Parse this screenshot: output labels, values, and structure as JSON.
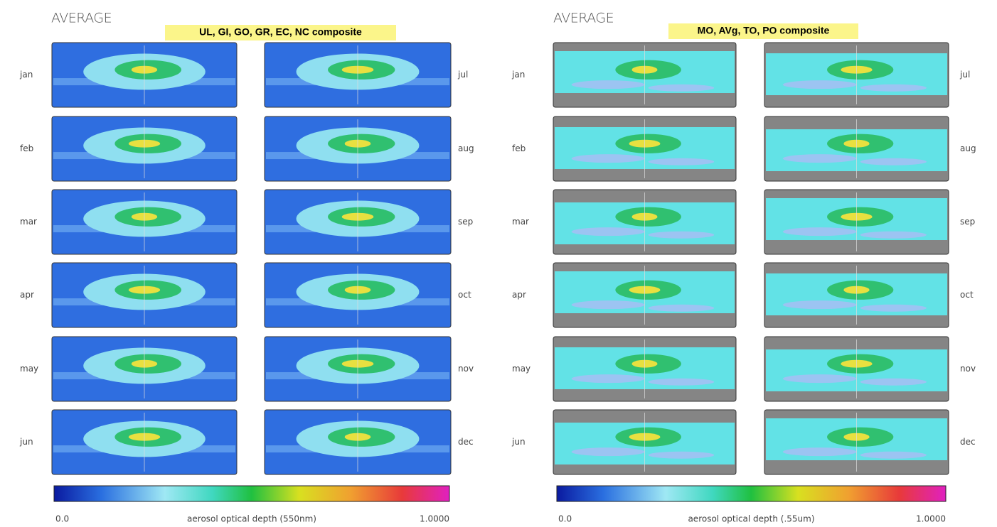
{
  "panels": [
    {
      "title": "AVERAGE",
      "subtitle": "UL, GI, GO, GR, EC, NC composite",
      "months_left": [
        "jan",
        "feb",
        "mar",
        "apr",
        "may",
        "jun"
      ],
      "months_right": [
        "jul",
        "aug",
        "sep",
        "oct",
        "nov",
        "dec"
      ],
      "colorbar": {
        "min_label": "0.0",
        "label": "aerosol optical depth (550nm)",
        "max_label": "1.0000"
      }
    },
    {
      "title": "AVERAGE",
      "subtitle": "MO, AVg, TO, PO composite",
      "months_left": [
        "jan",
        "feb",
        "mar",
        "apr",
        "may",
        "jun"
      ],
      "months_right": [
        "jul",
        "aug",
        "sep",
        "oct",
        "nov",
        "dec"
      ],
      "colorbar": {
        "min_label": "0.0",
        "label": "aerosol optical depth (.55um)",
        "max_label": "1.0000"
      }
    }
  ]
}
